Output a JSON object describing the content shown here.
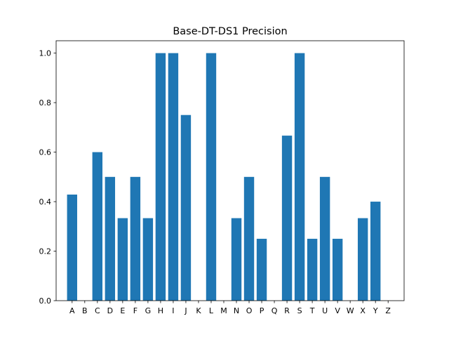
{
  "chart_data": {
    "type": "bar",
    "title": "Base-DT-DS1 Precision",
    "xlabel": "",
    "ylabel": "",
    "categories": [
      "A",
      "B",
      "C",
      "D",
      "E",
      "F",
      "G",
      "H",
      "I",
      "J",
      "K",
      "L",
      "M",
      "N",
      "O",
      "P",
      "Q",
      "R",
      "S",
      "T",
      "U",
      "V",
      "W",
      "X",
      "Y",
      "Z"
    ],
    "values": [
      0.4286,
      0,
      0.6,
      0.5,
      0.3333,
      0.5,
      0.3333,
      1.0,
      1.0,
      0.75,
      0,
      1.0,
      0,
      0.3333,
      0.5,
      0.25,
      0,
      0.6667,
      1.0,
      0.25,
      0.5,
      0.25,
      0,
      0.3333,
      0.4,
      0
    ],
    "ylim": [
      0,
      1.05
    ],
    "yticks": [
      "0.0",
      "0.2",
      "0.4",
      "0.6",
      "0.8",
      "1.0"
    ],
    "grid": false,
    "bar_color": "#1f77b4"
  }
}
